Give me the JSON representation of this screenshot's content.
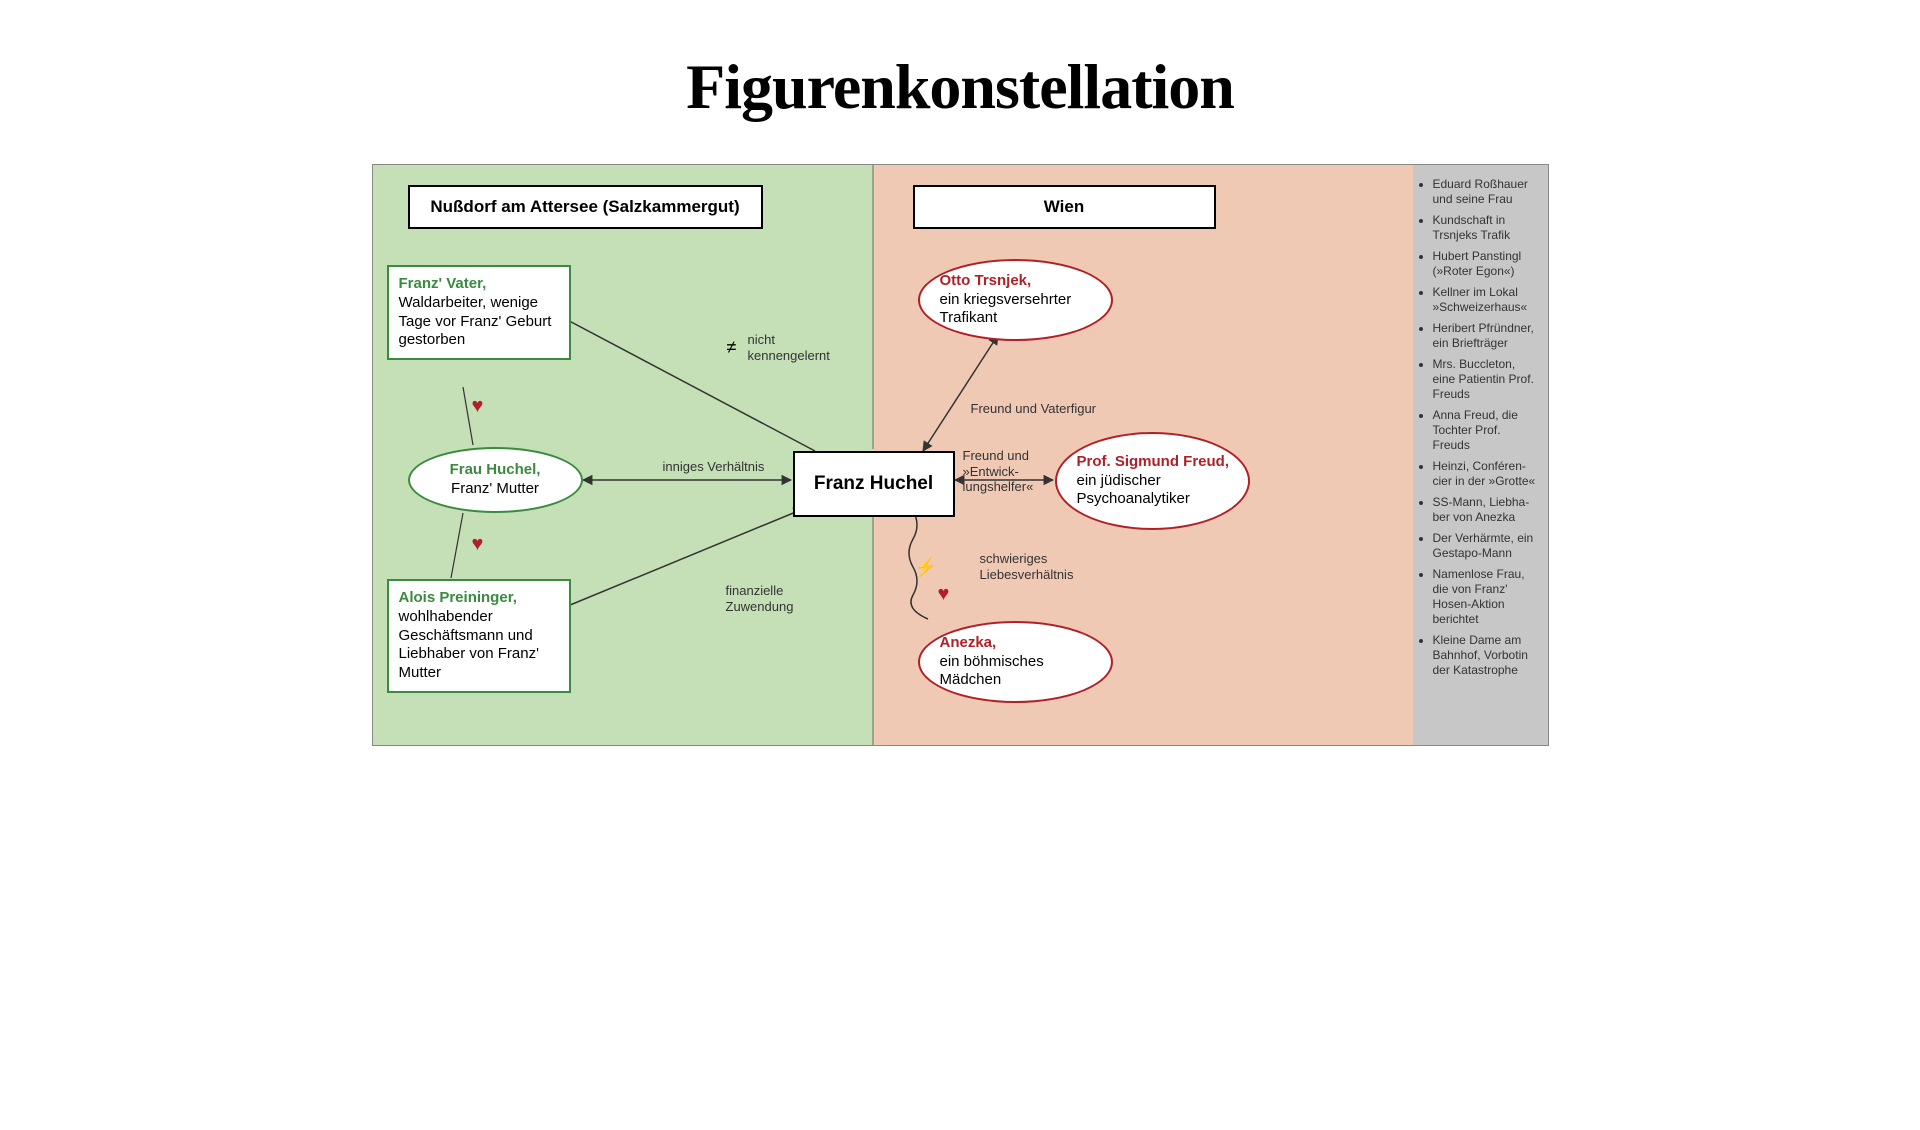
{
  "title": "Figurenkonstellation",
  "regions": {
    "left": {
      "header": "Nußdorf am Attersee (Salzkammergut)",
      "bg": "#c5e0b6"
    },
    "right": {
      "header": "Wien",
      "bg": "#f0c9b5"
    },
    "side": {
      "bg": "#c7c7c7"
    }
  },
  "colors": {
    "green_border": "#3a8a3f",
    "green_text": "#3a8a3f",
    "red_border": "#b12028",
    "red_text": "#b12028",
    "black": "#000000",
    "heart_red": "#b12028",
    "bolt": "#e8b93b",
    "line": "#333333",
    "label": "#333333"
  },
  "nodes": {
    "vater": {
      "name": "Franz' Vater,",
      "desc": "Waldarbeiter, wenige Tage vor Franz' Geburt gestorben"
    },
    "mutter": {
      "name": "Frau Huchel,",
      "desc": "Franz' Mutter"
    },
    "preininger": {
      "name": "Alois Preininger,",
      "desc": "wohlhabender Geschäftsmann und Liebhaber von Franz' Mutter"
    },
    "franz": {
      "name": "Franz Huchel"
    },
    "otto": {
      "name": "Otto Trsnjek,",
      "desc": "ein kriegsversehrter Trafikant"
    },
    "freud": {
      "name": "Prof. Sigmund Freud,",
      "desc": "ein jüdischer Psychoanalytiker"
    },
    "anezka": {
      "name": "Anezka,",
      "desc": "ein böhmisches Mädchen"
    }
  },
  "edges": {
    "vater_franz": {
      "label": "nicht kennengelernt",
      "symbol": "≠"
    },
    "mutter_franz": {
      "label": "inniges Verhältnis"
    },
    "preininger_franz": {
      "label": "finanzielle Zuwendung"
    },
    "otto_franz": {
      "label": "Freund und Vaterfigur"
    },
    "freud_franz": {
      "label1": "Freund und",
      "label2": "»Entwick-",
      "label3": "lungshelfer«"
    },
    "anezka_franz": {
      "label": "schwieriges Liebesverhältnis"
    }
  },
  "side_list": [
    "Eduard Roßhauer und seine Frau",
    "Kundschaft in Trsnjeks Trafik",
    "Hubert Panstingl (»Roter Egon«)",
    "Kellner im Lokal »Schweizerhaus«",
    "Heribert Pfründ­ner, ein Briefträger",
    "Mrs. Buccleton, eine Patientin Prof. Freuds",
    "Anna Freud, die Tochter Prof. Freuds",
    "Heinzi, Conféren­cier in der »Grotte«",
    "SS-Mann, Liebha­ber von Anezka",
    "Der Verhärmte, ein Gestapo-Mann",
    "Namenlose Frau, die von Franz' Hosen-Aktion berichtet",
    "Kleine Dame am Bahnhof, Vorbotin der Katastrophe"
  ]
}
